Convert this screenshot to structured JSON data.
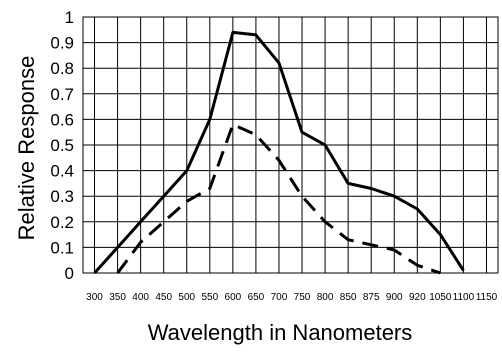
{
  "chart_data": {
    "type": "line",
    "title": "",
    "xlabel": "Wavelength in Nanometers",
    "ylabel": "Relative Response",
    "x_tick_labels": [
      "300",
      "350",
      "400",
      "450",
      "500",
      "550",
      "600",
      "650",
      "700",
      "750",
      "800",
      "850",
      "875",
      "900",
      "920",
      "1050",
      "1100",
      "1150"
    ],
    "y_tick_labels": [
      "0",
      "0.1",
      "0.2",
      "0.3",
      "0.4",
      "0.5",
      "0.6",
      "0.7",
      "0.8",
      "0.9",
      "1"
    ],
    "ylim": [
      0,
      1
    ],
    "grid": true,
    "legend": "none",
    "series": [
      {
        "style": "solid",
        "color": "#000000",
        "x": [
          "300",
          "350",
          "400",
          "450",
          "500",
          "550",
          "600",
          "650",
          "700",
          "750",
          "800",
          "850",
          "875",
          "900",
          "920",
          "1050",
          "1100"
        ],
        "y": [
          0,
          0.1,
          0.2,
          0.3,
          0.4,
          0.6,
          0.94,
          0.93,
          0.82,
          0.55,
          0.5,
          0.35,
          0.33,
          0.3,
          0.25,
          0.15,
          0.01
        ]
      },
      {
        "style": "dashed",
        "color": "#000000",
        "x": [
          "350",
          "400",
          "450",
          "500",
          "550",
          "600",
          "650",
          "700",
          "750",
          "800",
          "850",
          "875",
          "900",
          "920",
          "1050"
        ],
        "y": [
          0,
          0.12,
          0.2,
          0.28,
          0.33,
          0.58,
          0.54,
          0.44,
          0.3,
          0.2,
          0.13,
          0.11,
          0.09,
          0.03,
          0.0
        ]
      }
    ]
  }
}
